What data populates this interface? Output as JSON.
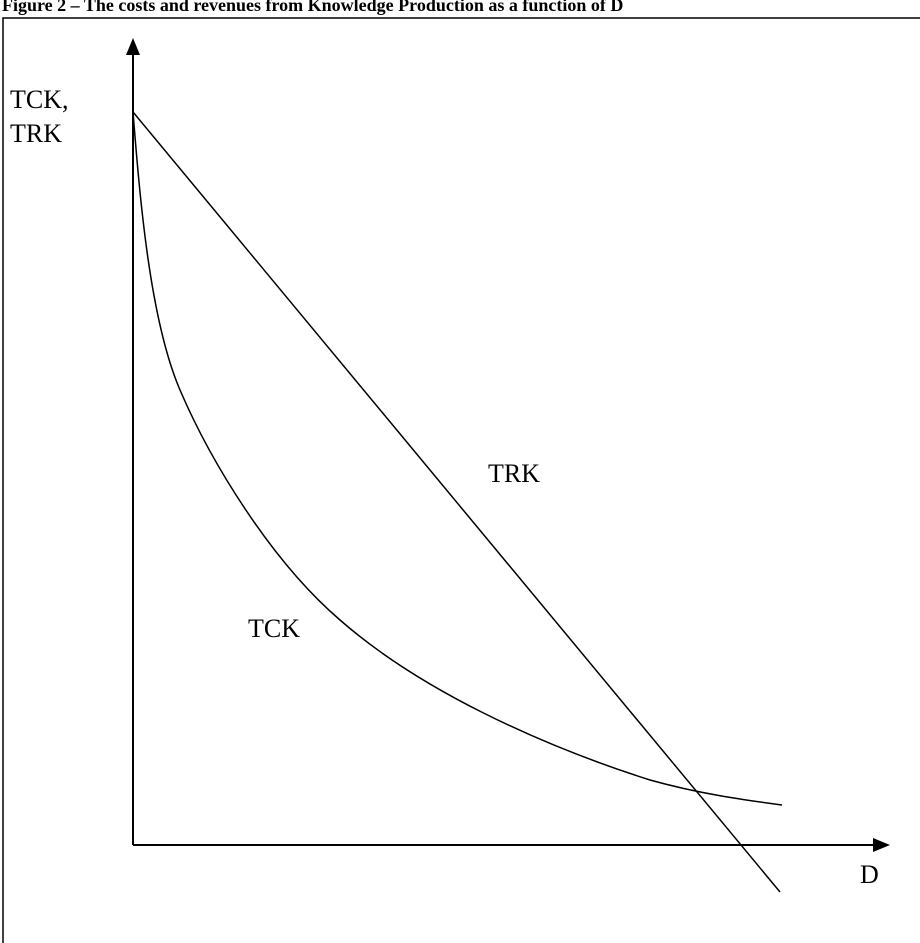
{
  "figure": {
    "title": "Figure 2 – The costs and revenues from Knowledge Production as a function of D",
    "y_axis_label_line1": "TCK,",
    "y_axis_label_line2": "TRK",
    "x_axis_label": "D",
    "curves": [
      {
        "label": "TRK"
      },
      {
        "label": "TCK"
      }
    ]
  }
}
